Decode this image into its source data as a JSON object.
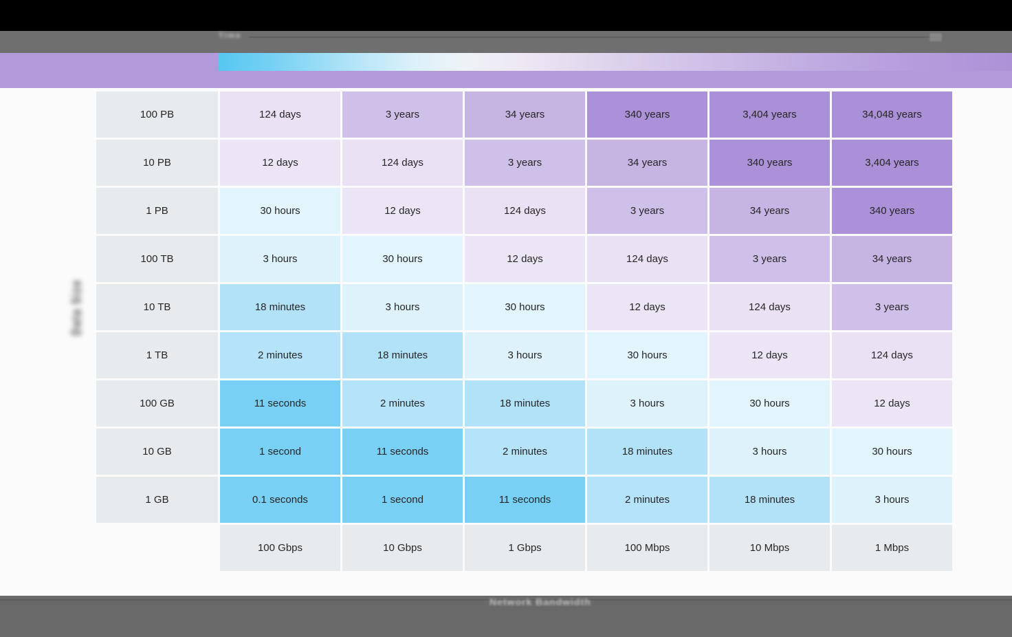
{
  "header": {
    "toolbar_note": "Time"
  },
  "colors": {
    "black_bar": "#000000",
    "gray_bar": "#6f6f6f",
    "purple_band": "#b199da",
    "label_cell_bg": "#e8ebee",
    "cell_text": "#262626",
    "gradient_start": "#55c7f1",
    "gradient_mid": "#eef2f7",
    "gradient_end": "#ac93d8"
  },
  "chart_data": {
    "type": "heatmap",
    "xlabel": "Network Bandwidth",
    "ylabel": "Data Size",
    "legend": "blue = short transfer time, purple = long transfer time",
    "x_categories": [
      "100 Gbps",
      "10 Gbps",
      "1 Gbps",
      "100 Mbps",
      "10 Mbps",
      "1 Mbps"
    ],
    "y_categories": [
      "100 PB",
      "10 PB",
      "1 PB",
      "100 TB",
      "10 TB",
      "1 TB",
      "100 GB",
      "10 GB",
      "1 GB"
    ],
    "rows": [
      [
        "124 days",
        "3 years",
        "34 years",
        "340 years",
        "3,404 years",
        "34,048 years"
      ],
      [
        "12 days",
        "124 days",
        "3 years",
        "34 years",
        "340 years",
        "3,404 years"
      ],
      [
        "30 hours",
        "12 days",
        "124 days",
        "3 years",
        "34 years",
        "340 years"
      ],
      [
        "3 hours",
        "30 hours",
        "12 days",
        "124 days",
        "3 years",
        "34 years"
      ],
      [
        "18 minutes",
        "3 hours",
        "30 hours",
        "12 days",
        "124 days",
        "3 years"
      ],
      [
        "2 minutes",
        "18 minutes",
        "3 hours",
        "30 hours",
        "12 days",
        "124 days"
      ],
      [
        "11 seconds",
        "2 minutes",
        "18 minutes",
        "3 hours",
        "30 hours",
        "12 days"
      ],
      [
        "1 second",
        "11 seconds",
        "2 minutes",
        "18 minutes",
        "3 hours",
        "30 hours"
      ],
      [
        "0.1 seconds",
        "1 second",
        "11 seconds",
        "2 minutes",
        "18 minutes",
        "3 hours"
      ]
    ],
    "value_colors": {
      "0.1 seconds": "#79d0f5",
      "1 second": "#79d0f5",
      "11 seconds": "#79d0f5",
      "2 minutes": "#b5e3f9",
      "18 minutes": "#b2e2f8",
      "3 hours": "#def2fb",
      "30 hours": "#e2f4fc",
      "12 days": "#ece5f5",
      "124 days": "#eae2f4",
      "3 years": "#cfc0e9",
      "34 years": "#c6b4e3",
      "340 years": "#ab91d7",
      "3,404 years": "#aa90d6",
      "34,048 years": "#aa90d6"
    }
  }
}
